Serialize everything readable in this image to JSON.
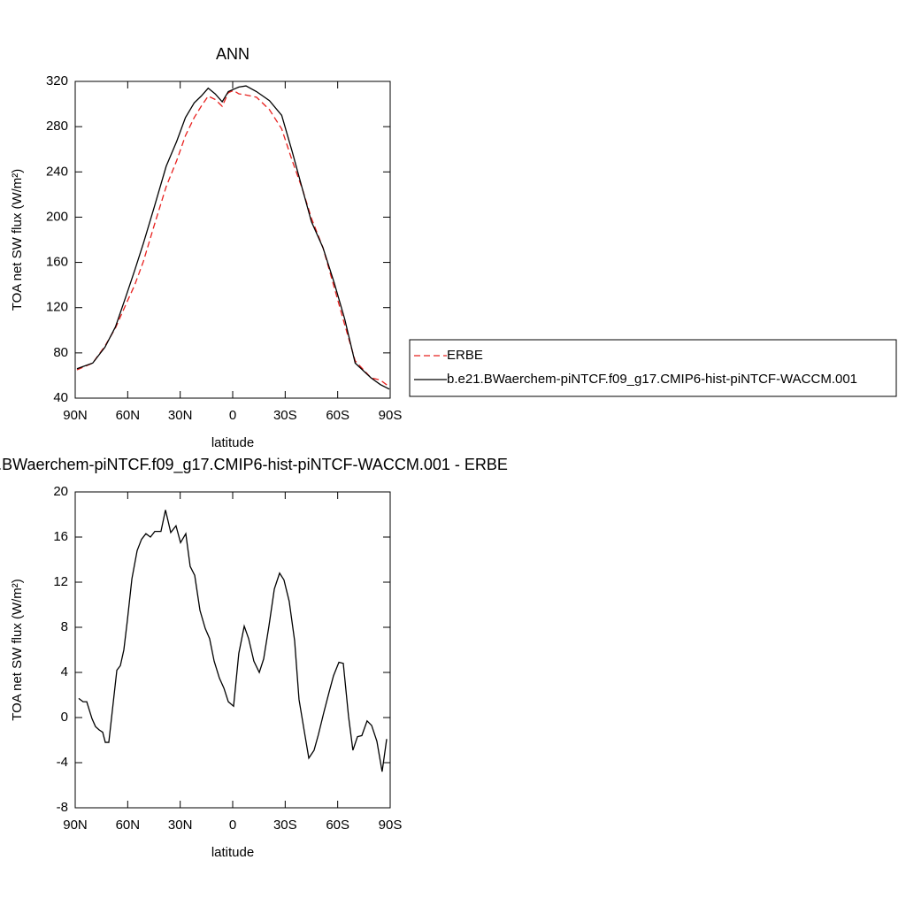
{
  "chart_data": [
    {
      "type": "line",
      "title": "ANN",
      "x_label": "latitude",
      "y_label": "TOA net SW flux (W/m²)",
      "xlim": [
        90,
        -90
      ],
      "xticks": [
        {
          "value": 90,
          "label": "90N"
        },
        {
          "value": 60,
          "label": "60N"
        },
        {
          "value": 30,
          "label": "30N"
        },
        0,
        {
          "value": -30,
          "label": "30S"
        },
        {
          "value": -60,
          "label": "60S"
        },
        {
          "value": -90,
          "label": "90S"
        }
      ],
      "ylim": [
        40,
        320
      ],
      "yticks": [
        40,
        80,
        120,
        160,
        200,
        240,
        280,
        320
      ],
      "x": [
        89,
        80,
        73,
        67,
        61,
        56,
        51,
        45,
        38,
        32,
        27,
        22,
        18,
        14,
        10,
        6,
        2.5,
        -0.5,
        -3.5,
        -7.6,
        -13.6,
        -21,
        -28,
        -34,
        -40,
        -45,
        -51.6,
        -58,
        -64,
        -70,
        -79,
        -84.4,
        -89.5
      ],
      "series": [
        {
          "name": "ERBE",
          "color": "#e8201e",
          "dash": true,
          "values": [
            65,
            71,
            86,
            102,
            123,
            140,
            161,
            192,
            227,
            250,
            272,
            288,
            298,
            307,
            304,
            298,
            310,
            312,
            309,
            308,
            306,
            295,
            278,
            250,
            224,
            199,
            173,
            138,
            105,
            73,
            58,
            56,
            50
          ]
        },
        {
          "name": "b.e21.BWaerchem-piNTCF.f09_g17.CMIP6-hist-piNTCF-WACCM.001",
          "color": "#000000",
          "dash": false,
          "values": [
            66,
            71,
            85,
            103,
            130,
            153,
            177,
            208,
            245,
            267,
            288,
            301,
            307,
            314,
            309,
            302,
            311,
            313,
            315,
            316,
            311,
            303,
            290,
            258,
            224,
            196,
            173,
            142,
            110,
            71,
            58,
            52,
            48
          ]
        }
      ]
    },
    {
      "type": "line",
      "title": "b.e21.BWaerchem-piNTCF.f09_g17.CMIP6-hist-piNTCF-WACCM.001 - ERBE",
      "x_label": "latitude",
      "y_label": "TOA net SW flux (W/m²)",
      "xlim": [
        90,
        -90
      ],
      "xticks": [
        {
          "value": 90,
          "label": "90N"
        },
        {
          "value": 60,
          "label": "60N"
        },
        {
          "value": 30,
          "label": "30N"
        },
        0,
        {
          "value": -30,
          "label": "30S"
        },
        {
          "value": -60,
          "label": "60S"
        },
        {
          "value": -90,
          "label": "90S"
        }
      ],
      "ylim": [
        -8,
        20
      ],
      "yticks": [
        -8,
        -4,
        0,
        4,
        8,
        12,
        16,
        20
      ],
      "x": [
        88,
        85.5,
        83.4,
        80.4,
        78.4,
        76.3,
        74.3,
        72.8,
        70.8,
        66.2,
        64.2,
        62.2,
        60.2,
        57.6,
        54.6,
        52.1,
        49.6,
        47,
        44.5,
        41,
        38.4,
        35.4,
        32.4,
        29.8,
        26.8,
        24.3,
        21.7,
        18.7,
        15.7,
        13.2,
        10.6,
        7.6,
        5,
        2.5,
        -0.5,
        -3.5,
        -6.6,
        -9.1,
        -12.1,
        -15.2,
        -17.7,
        -20.7,
        -23.8,
        -26.8,
        -29.3,
        -32.3,
        -35.4,
        -37.9,
        -40.9,
        -43.5,
        -46.5,
        -49,
        -52,
        -55,
        -57.6,
        -60.7,
        -63.2,
        -66.2,
        -68.7,
        -71.3,
        -73.8,
        -76.8,
        -79.4,
        -82.4,
        -85.4,
        -88
      ],
      "series": [
        {
          "name": "",
          "color": "#000000",
          "dash": false,
          "values": [
            1.7,
            1.4,
            1.4,
            -0.1,
            -0.8,
            -1.1,
            -1.3,
            -2.2,
            -2.2,
            4.2,
            4.6,
            6,
            8.6,
            12.3,
            14.8,
            15.8,
            16.3,
            16,
            16.5,
            16.5,
            18.4,
            16.4,
            17,
            15.5,
            16.3,
            13.4,
            12.6,
            9.5,
            7.9,
            7,
            5,
            3.5,
            2.6,
            1.4,
            1,
            5.7,
            8.1,
            7,
            5,
            4,
            5.2,
            8.1,
            11.4,
            12.8,
            12.2,
            10.3,
            6.8,
            1.6,
            -1.2,
            -3.6,
            -2.9,
            -1.5,
            0.4,
            2.2,
            3.7,
            4.9,
            4.8,
            0.1,
            -2.9,
            -1.7,
            -1.6,
            -0.3,
            -0.7,
            -2.1,
            -4.8,
            -1.9
          ]
        }
      ]
    }
  ],
  "legend": {
    "corner": "right",
    "entries": [
      0,
      1
    ]
  }
}
